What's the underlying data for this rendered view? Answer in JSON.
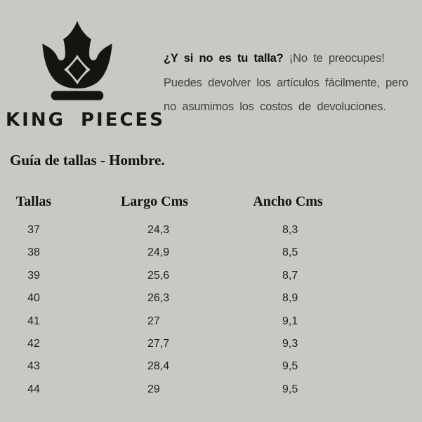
{
  "brand": {
    "name": "KING PIECES",
    "logo": "crown-with-diamond-icon"
  },
  "notice": {
    "question_bold": "¿Y si no es tu talla?",
    "line1_rest": "¡No te preocupes!",
    "line2": "Puedes devolver los artículos fácilmente, pero",
    "line3": "no asumimos los costos de devoluciones."
  },
  "section": {
    "title": "Guía de tallas - Hombre."
  },
  "table": {
    "headers": [
      "Tallas",
      "Largo Cms",
      "Ancho Cms"
    ],
    "rows": [
      {
        "talla": "37",
        "largo": "24,3",
        "ancho": "8,3"
      },
      {
        "talla": "38",
        "largo": "24,9",
        "ancho": "8,5"
      },
      {
        "talla": "39",
        "largo": "25,6",
        "ancho": "8,7"
      },
      {
        "talla": "40",
        "largo": "26,3",
        "ancho": "8,9"
      },
      {
        "talla": "41",
        "largo": "27",
        "ancho": "9,1"
      },
      {
        "talla": "42",
        "largo": "27,7",
        "ancho": "9,3"
      },
      {
        "talla": "43",
        "largo": "28,4",
        "ancho": "9,5"
      },
      {
        "talla": "44",
        "largo": "29",
        "ancho": "9,5"
      }
    ]
  },
  "colors": {
    "background": "#c8c9c3",
    "ink": "#151412",
    "paragraph": "#3f3f3f"
  }
}
